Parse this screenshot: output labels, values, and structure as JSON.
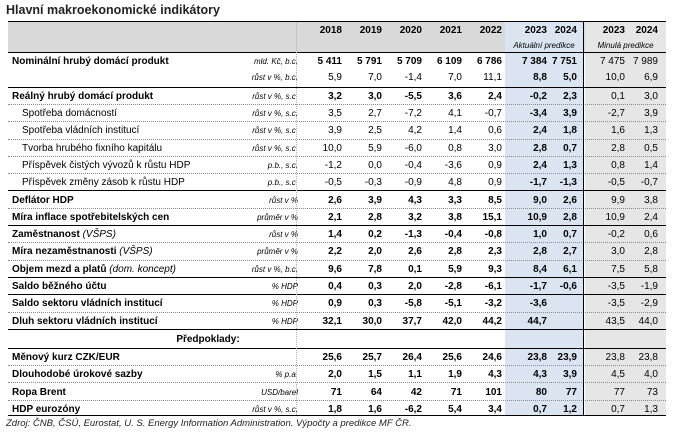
{
  "title": "Hlavní makroekonomické indikátory",
  "years": [
    "2018",
    "2019",
    "2020",
    "2021",
    "2022",
    "2023",
    "2024",
    "2023",
    "2024"
  ],
  "forecast_label": "Aktuální predikce",
  "previous_label": "Minulá predikce",
  "preconditions_label": "Předpoklady:",
  "source": "Zdroj: ČNB, ČSÚ, Eurostat, U. S. Energy Information Administration. Výpočty a predikce MF ČR.",
  "colors": {
    "forecast_band": "#dbe5f1",
    "previous_band": "#e6e6e6",
    "header_band": "#d9d9d9"
  },
  "rows": [
    {
      "name": "Nominální hrubý domácí produkt",
      "unit": "mld. Kč, b.c.",
      "values": [
        "5 411",
        "5 791",
        "5 709",
        "6 109",
        "6 786",
        "7 384",
        "7 751",
        "7 475",
        "7 989"
      ]
    },
    {
      "name": "",
      "unit": "růst v %, b.c.",
      "values": [
        "5,9",
        "7,0",
        "-1,4",
        "7,0",
        "11,1",
        "8,8",
        "5,0",
        "10,0",
        "6,9"
      ]
    },
    {
      "name": "Reálný hrubý domácí produkt",
      "unit": "růst v %, s.c.",
      "values": [
        "3,2",
        "3,0",
        "-5,5",
        "3,6",
        "2,4",
        "-0,2",
        "2,3",
        "0,1",
        "3,0"
      ]
    },
    {
      "name": "Spotřeba domácností",
      "unit": "růst v %, s.c.",
      "values": [
        "3,5",
        "2,7",
        "-7,2",
        "4,1",
        "-0,7",
        "-3,4",
        "3,9",
        "-2,7",
        "3,9"
      ]
    },
    {
      "name": "Spotřeba vládních institucí",
      "unit": "růst v %, s.c.",
      "values": [
        "3,9",
        "2,5",
        "4,2",
        "1,4",
        "0,6",
        "2,4",
        "1,8",
        "1,6",
        "1,3"
      ]
    },
    {
      "name": "Tvorba hrubého fixního kapitálu",
      "unit": "růst v %, s.c.",
      "values": [
        "10,0",
        "5,9",
        "-6,0",
        "0,8",
        "3,0",
        "2,8",
        "0,7",
        "2,8",
        "0,5"
      ]
    },
    {
      "name": "Příspěvek čistých vývozů k růstu HDP",
      "unit": "p.b., s.c.",
      "values": [
        "-1,2",
        "0,0",
        "-0,4",
        "-3,6",
        "0,9",
        "2,4",
        "1,3",
        "0,8",
        "1,4"
      ]
    },
    {
      "name": "Příspěvek změny zásob k růstu HDP",
      "unit": "p.b., s.c.",
      "values": [
        "-0,5",
        "-0,3",
        "-0,9",
        "4,8",
        "0,9",
        "-1,7",
        "-1,3",
        "-0,5",
        "-0,7"
      ]
    },
    {
      "name": "Deflátor HDP",
      "unit": "růst v %",
      "values": [
        "2,6",
        "3,9",
        "4,3",
        "3,3",
        "8,5",
        "9,0",
        "2,6",
        "9,9",
        "3,8"
      ]
    },
    {
      "name": "Míra inflace spotřebitelských cen",
      "unit": "průměr v %",
      "values": [
        "2,1",
        "2,8",
        "3,2",
        "3,8",
        "15,1",
        "10,9",
        "2,8",
        "10,9",
        "2,4"
      ]
    },
    {
      "name": "Zaměstnanost",
      "name_note": "(VŠPS)",
      "unit": "růst v %",
      "values": [
        "1,4",
        "0,2",
        "-1,3",
        "-0,4",
        "-0,8",
        "1,0",
        "0,7",
        "-0,2",
        "0,6"
      ]
    },
    {
      "name": "Míra nezaměstnanosti",
      "name_note": "(VŠPS)",
      "unit": "průměr v %",
      "values": [
        "2,2",
        "2,0",
        "2,6",
        "2,8",
        "2,3",
        "2,8",
        "2,7",
        "3,0",
        "2,8"
      ]
    },
    {
      "name": "Objem mezd a platů",
      "name_note": "(dom. koncept)",
      "unit": "růst v %, b.c.",
      "values": [
        "9,6",
        "7,8",
        "0,1",
        "5,9",
        "9,3",
        "8,4",
        "6,1",
        "7,5",
        "5,8"
      ]
    },
    {
      "name": "Saldo běžného účtu",
      "unit": "% HDP",
      "values": [
        "0,4",
        "0,3",
        "2,0",
        "-2,8",
        "-6,1",
        "-1,7",
        "-0,6",
        "-3,5",
        "-1,9"
      ]
    },
    {
      "name": "Saldo sektoru vládních institucí",
      "unit": "% HDP",
      "values": [
        "0,9",
        "0,3",
        "-5,8",
        "-5,1",
        "-3,2",
        "-3,6",
        "",
        "-3,5",
        "-2,9"
      ]
    },
    {
      "name": "Dluh sektoru vládních institucí",
      "unit": "% HDP",
      "values": [
        "32,1",
        "30,0",
        "37,7",
        "42,0",
        "44,2",
        "44,7",
        "",
        "43,5",
        "44,0"
      ]
    },
    {
      "name": "Měnový kurz CZK/EUR",
      "unit": "",
      "values": [
        "25,6",
        "25,7",
        "26,4",
        "25,6",
        "24,6",
        "23,8",
        "23,9",
        "23,8",
        "23,8"
      ]
    },
    {
      "name": "Dlouhodobé úrokové sazby",
      "unit": "% p.a.",
      "values": [
        "2,0",
        "1,5",
        "1,1",
        "1,9",
        "4,3",
        "4,3",
        "3,9",
        "4,5",
        "4,0"
      ]
    },
    {
      "name": "Ropa Brent",
      "unit": "USD/barel",
      "values": [
        "71",
        "64",
        "42",
        "71",
        "101",
        "80",
        "77",
        "77",
        "73"
      ]
    },
    {
      "name": "HDP eurozóny",
      "unit": "růst v %, s.c.",
      "values": [
        "1,8",
        "1,6",
        "-6,2",
        "5,4",
        "3,4",
        "0,7",
        "1,2",
        "0,7",
        "1,3"
      ]
    }
  ]
}
